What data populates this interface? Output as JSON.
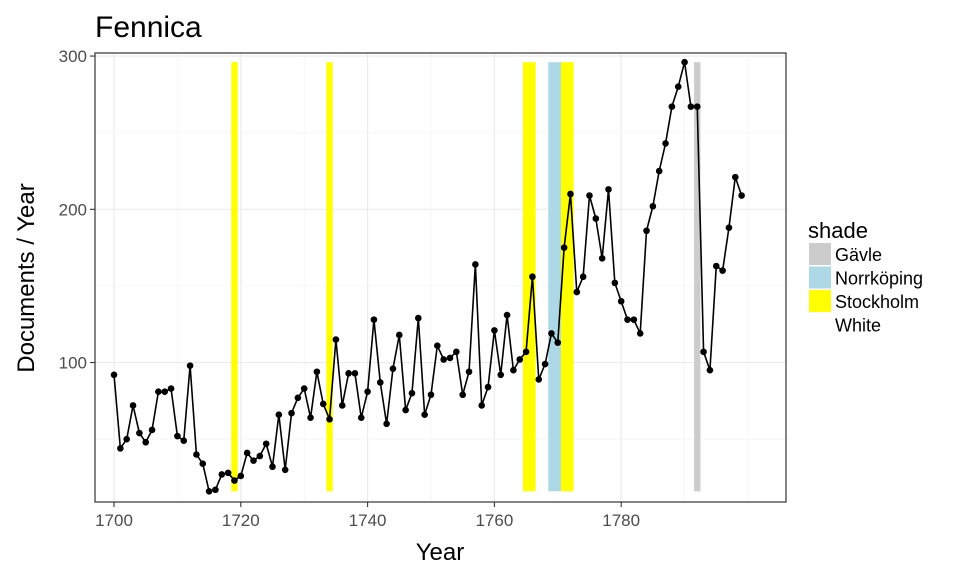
{
  "chart_data": {
    "type": "line",
    "title": "Fennica",
    "xlabel": "Year",
    "ylabel": "Documents / Year",
    "xlim": [
      1697,
      1806
    ],
    "ylim": [
      9,
      302
    ],
    "x_ticks": [
      1700,
      1720,
      1740,
      1760,
      1780
    ],
    "y_ticks": [
      100,
      200,
      300
    ],
    "x_tick_labels": [
      "1700",
      "1720",
      "1740",
      "1760",
      "1780"
    ],
    "y_tick_labels": [
      "100",
      "200",
      "300"
    ],
    "grid": true,
    "legend": {
      "title": "shade",
      "position": "right",
      "entries": [
        {
          "label": "Gävle",
          "color": "#cccccc"
        },
        {
          "label": "Norrköping",
          "color": "#add8e6"
        },
        {
          "label": "Stockholm",
          "color": "#ffff00"
        },
        {
          "label": "White",
          "color": "#ffffff"
        }
      ]
    },
    "shading": {
      "y_range": [
        16,
        296
      ],
      "bands": [
        {
          "x_start": 1718.5,
          "x_end": 1719.5,
          "shade": "Stockholm",
          "color": "#ffff00"
        },
        {
          "x_start": 1733.5,
          "x_end": 1734.5,
          "shade": "Stockholm",
          "color": "#ffff00"
        },
        {
          "x_start": 1764.5,
          "x_end": 1766.5,
          "shade": "Stockholm",
          "color": "#ffff00"
        },
        {
          "x_start": 1768.5,
          "x_end": 1770.5,
          "shade": "Norrköping",
          "color": "#add8e6"
        },
        {
          "x_start": 1770.5,
          "x_end": 1772.5,
          "shade": "Stockholm",
          "color": "#ffff00"
        },
        {
          "x_start": 1791.5,
          "x_end": 1792.5,
          "shade": "Gävle",
          "color": "#cccccc"
        }
      ]
    },
    "series": [
      {
        "x": [
          1700,
          1701,
          1702,
          1703,
          1704,
          1705,
          1706,
          1707,
          1708,
          1709,
          1710,
          1711,
          1712,
          1713,
          1714,
          1715,
          1716,
          1717,
          1718,
          1719,
          1720,
          1721,
          1722,
          1723,
          1724,
          1725,
          1726,
          1727,
          1728,
          1729,
          1730,
          1731,
          1732,
          1733,
          1734,
          1735,
          1736,
          1737,
          1738,
          1739,
          1740,
          1741,
          1742,
          1743,
          1744,
          1745,
          1746,
          1747,
          1748,
          1749,
          1750,
          1751,
          1752,
          1753,
          1754,
          1755,
          1756,
          1757,
          1758,
          1759,
          1760,
          1761,
          1762,
          1763,
          1764,
          1765,
          1766,
          1767,
          1768,
          1769,
          1770,
          1771,
          1772,
          1773,
          1774,
          1775,
          1776,
          1777,
          1778,
          1779,
          1780,
          1781,
          1782,
          1783,
          1784,
          1785,
          1786,
          1787,
          1788,
          1789,
          1790,
          1791,
          1792,
          1793,
          1794,
          1795,
          1796,
          1797,
          1798,
          1799
        ],
        "values": [
          92,
          44,
          50,
          72,
          54,
          48,
          56,
          81,
          81,
          83,
          52,
          49,
          98,
          40,
          34,
          16,
          17,
          27,
          28,
          23,
          26,
          41,
          36,
          39,
          47,
          32,
          66,
          30,
          67,
          77,
          83,
          64,
          94,
          73,
          63,
          115,
          72,
          93,
          93,
          64,
          81,
          128,
          87,
          60,
          96,
          118,
          69,
          80,
          129,
          66,
          79,
          111,
          102,
          103,
          107,
          79,
          94,
          164,
          72,
          84,
          121,
          92,
          131,
          95,
          102,
          107,
          156,
          89,
          99,
          119,
          113,
          175,
          210,
          146,
          156,
          209,
          194,
          168,
          213,
          152,
          140,
          128,
          128,
          119,
          186,
          202,
          225,
          243,
          267,
          280,
          296,
          267,
          267,
          107,
          95,
          163,
          160,
          188,
          221,
          209
        ],
        "color": "#000000"
      }
    ]
  }
}
